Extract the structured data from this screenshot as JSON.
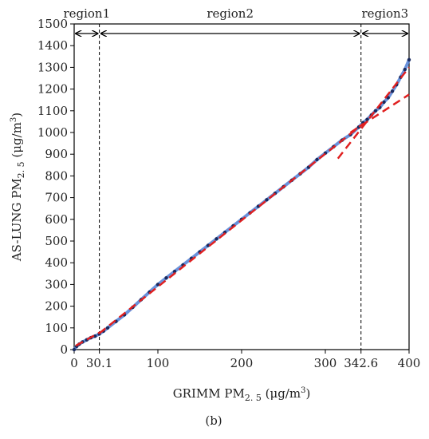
{
  "chart_data": {
    "type": "scatter",
    "xlabel": {
      "prefix": "GRIMM PM",
      "sub": "2. 5",
      "units_pre": " (μg/m",
      "units_sup": "3",
      "units_post": ")"
    },
    "ylabel": {
      "prefix": "AS-LUNG PM",
      "sub": "2. 5",
      "units_pre": " (μg/m",
      "units_sup": "3",
      "units_post": ")"
    },
    "xlim": [
      0,
      400
    ],
    "ylim": [
      0,
      1500
    ],
    "xticks": [
      0,
      30.1,
      100,
      200,
      300,
      342.6,
      400
    ],
    "xtick_labels": [
      "0",
      "30.1",
      "100",
      "200",
      "300",
      "342.6",
      "400"
    ],
    "yticks": [
      0,
      100,
      200,
      300,
      400,
      500,
      600,
      700,
      800,
      900,
      1000,
      1100,
      1200,
      1300,
      1400,
      1500
    ],
    "grid": false,
    "regions": [
      {
        "label": "region1",
        "start": 0,
        "end": 30.1
      },
      {
        "label": "region2",
        "start": 30.1,
        "end": 342.6
      },
      {
        "label": "region3",
        "start": 342.6,
        "end": 400
      }
    ],
    "boundaries": [
      30.1,
      342.6
    ],
    "series": [
      {
        "type": "scatter",
        "marker_color": "#1a2a5e",
        "line_color": "#4f7fd6",
        "points": [
          [
            0,
            0
          ],
          [
            3,
            15
          ],
          [
            6,
            25
          ],
          [
            10,
            35
          ],
          [
            15,
            45
          ],
          [
            20,
            55
          ],
          [
            25,
            62
          ],
          [
            30,
            72
          ],
          [
            35,
            85
          ],
          [
            40,
            100
          ],
          [
            50,
            130
          ],
          [
            60,
            160
          ],
          [
            70,
            195
          ],
          [
            80,
            230
          ],
          [
            90,
            265
          ],
          [
            100,
            300
          ],
          [
            110,
            330
          ],
          [
            120,
            360
          ],
          [
            130,
            390
          ],
          [
            140,
            420
          ],
          [
            150,
            450
          ],
          [
            160,
            480
          ],
          [
            170,
            510
          ],
          [
            180,
            540
          ],
          [
            190,
            570
          ],
          [
            200,
            600
          ],
          [
            210,
            630
          ],
          [
            220,
            660
          ],
          [
            230,
            690
          ],
          [
            240,
            720
          ],
          [
            250,
            750
          ],
          [
            260,
            780
          ],
          [
            270,
            810
          ],
          [
            280,
            840
          ],
          [
            290,
            875
          ],
          [
            300,
            905
          ],
          [
            310,
            935
          ],
          [
            320,
            965
          ],
          [
            330,
            990
          ],
          [
            340,
            1025
          ],
          [
            345,
            1045
          ],
          [
            350,
            1060
          ],
          [
            355,
            1080
          ],
          [
            360,
            1100
          ],
          [
            365,
            1115
          ],
          [
            370,
            1140
          ],
          [
            375,
            1160
          ],
          [
            380,
            1190
          ],
          [
            385,
            1220
          ],
          [
            390,
            1255
          ],
          [
            395,
            1290
          ],
          [
            400,
            1335
          ]
        ]
      }
    ],
    "fit_lines": [
      {
        "color": "#e02020",
        "style": "dashed",
        "x": [
          2,
          32
        ],
        "y": [
          18,
          82
        ]
      },
      {
        "color": "#e02020",
        "style": "dashed",
        "x": [
          30,
          345
        ],
        "y": [
          75,
          1040
        ]
      },
      {
        "color": "#e02020",
        "style": "dashed",
        "x": [
          315,
          400
        ],
        "y": [
          880,
          1300
        ]
      },
      {
        "color": "#e02020",
        "style": "dashed",
        "x": [
          330,
          400
        ],
        "y": [
          1000,
          1175
        ]
      }
    ]
  },
  "panel_label": "(b)"
}
